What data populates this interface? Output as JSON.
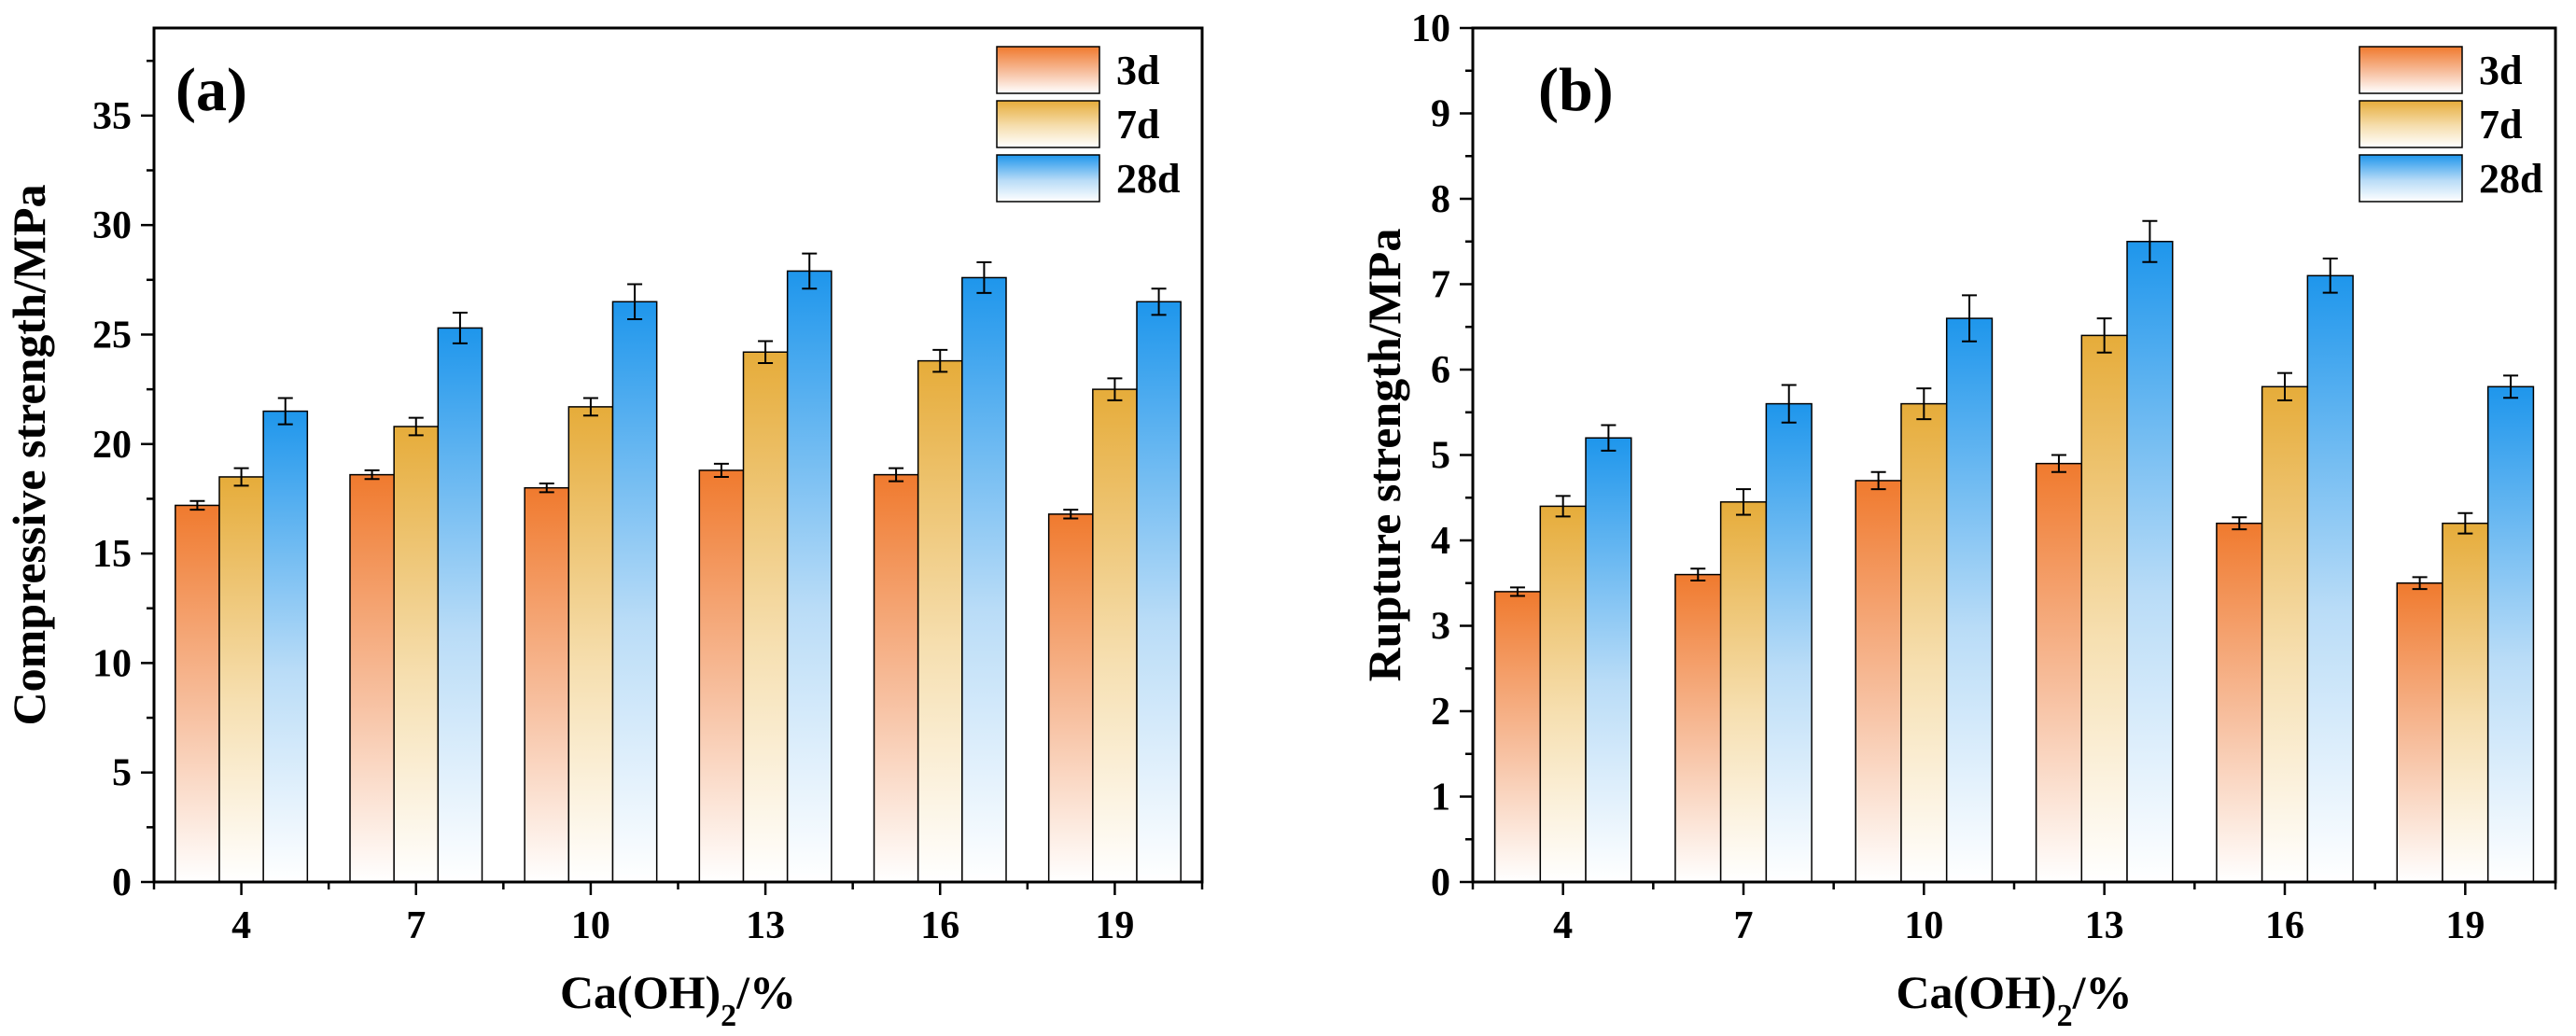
{
  "chart_data": [
    {
      "type": "bar",
      "panel_label": "(a)",
      "categories": [
        "4",
        "7",
        "10",
        "13",
        "16",
        "19"
      ],
      "xlabel_main": "Ca(OH)",
      "xlabel_sub": "2",
      "xlabel_tail": "/%",
      "ylabel": "Compressive strength/MPa",
      "ylim": [
        0,
        39
      ],
      "yticks": [
        0,
        5,
        10,
        15,
        20,
        25,
        30,
        35
      ],
      "ytick_labels": [
        "0",
        "5",
        "10",
        "15",
        "20",
        "25",
        "30",
        "35"
      ],
      "legend_position": "top-right",
      "series": [
        {
          "name": "3d",
          "values": [
            17.2,
            18.6,
            18.0,
            18.8,
            18.6,
            16.8
          ],
          "errors": [
            0.2,
            0.2,
            0.2,
            0.3,
            0.3,
            0.2
          ]
        },
        {
          "name": "7d",
          "values": [
            18.5,
            20.8,
            21.7,
            24.2,
            23.8,
            22.5
          ],
          "errors": [
            0.4,
            0.4,
            0.4,
            0.5,
            0.5,
            0.5
          ]
        },
        {
          "name": "28d",
          "values": [
            21.5,
            25.3,
            26.5,
            27.9,
            27.6,
            26.5
          ],
          "errors": [
            0.6,
            0.7,
            0.8,
            0.8,
            0.7,
            0.6
          ]
        }
      ]
    },
    {
      "type": "bar",
      "panel_label": "(b)",
      "categories": [
        "4",
        "7",
        "10",
        "13",
        "16",
        "19"
      ],
      "xlabel_main": "Ca(OH)",
      "xlabel_sub": "2",
      "xlabel_tail": "/%",
      "ylabel": "Rupture strength/MPa",
      "ylim": [
        0,
        10
      ],
      "yticks": [
        0,
        1,
        2,
        3,
        4,
        5,
        6,
        7,
        8,
        9,
        10
      ],
      "ytick_labels": [
        "0",
        "1",
        "2",
        "3",
        "4",
        "5",
        "6",
        "7",
        "8",
        "9",
        "10"
      ],
      "legend_position": "top-right",
      "series": [
        {
          "name": "3d",
          "values": [
            3.4,
            3.6,
            4.7,
            4.9,
            4.2,
            3.5
          ],
          "errors": [
            0.05,
            0.07,
            0.1,
            0.1,
            0.07,
            0.07
          ]
        },
        {
          "name": "7d",
          "values": [
            4.4,
            4.45,
            5.6,
            6.4,
            5.8,
            4.2
          ],
          "errors": [
            0.12,
            0.15,
            0.18,
            0.2,
            0.16,
            0.12
          ]
        },
        {
          "name": "28d",
          "values": [
            5.2,
            5.6,
            6.6,
            7.5,
            7.1,
            5.8
          ],
          "errors": [
            0.15,
            0.22,
            0.27,
            0.24,
            0.2,
            0.13
          ]
        }
      ]
    }
  ],
  "colors": {
    "3d": "#f07a2e",
    "7d": "#e6ac3a",
    "28d": "#1e96ec",
    "axis": "#000000"
  }
}
